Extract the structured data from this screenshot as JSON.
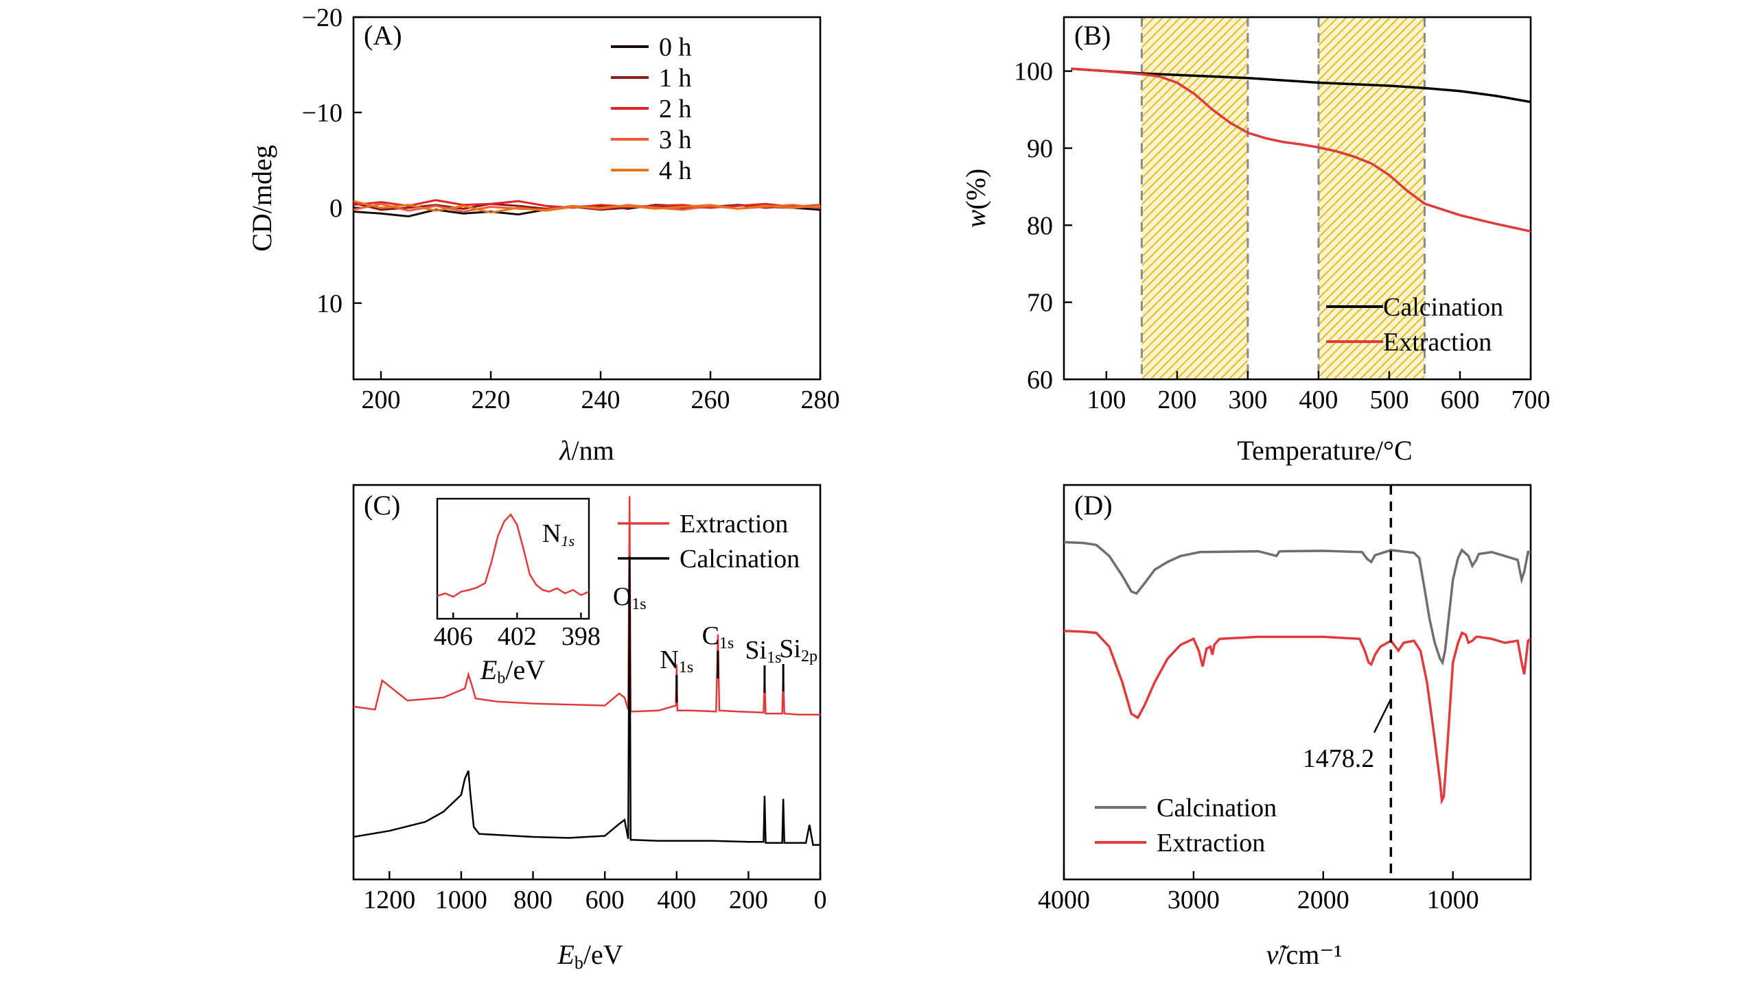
{
  "figure": {
    "panels": [
      "A",
      "B",
      "C",
      "D"
    ]
  },
  "chart_data": [
    {
      "id": "A",
      "type": "line",
      "panel_label": "(A)",
      "xlabel": "λ/nm",
      "ylabel": "CD/mdeg",
      "xlim": [
        195,
        280
      ],
      "ylim": [
        18,
        -20
      ],
      "y_inverted": true,
      "xticks": [
        200,
        220,
        240,
        260,
        280
      ],
      "yticks": [
        -20,
        -10,
        0,
        10
      ],
      "ytick_labels": [
        "−20",
        "−10",
        "0",
        "10"
      ],
      "legend_position": "top-center",
      "series": [
        {
          "name": "0 h",
          "color": "#1a0a0a",
          "x": [
            195,
            200,
            205,
            210,
            215,
            220,
            225,
            230,
            235,
            240,
            245,
            250,
            255,
            260,
            265,
            270,
            275,
            280
          ],
          "y": [
            0.4,
            0.6,
            0.9,
            0.2,
            0.6,
            0.4,
            0.7,
            0.2,
            -0.1,
            -0.2,
            0.1,
            -0.3,
            -0.2,
            0.0,
            -0.3,
            -0.1,
            0.0,
            0.2
          ]
        },
        {
          "name": "1 h",
          "color": "#8b1a1a",
          "x": [
            195,
            200,
            205,
            210,
            215,
            220,
            225,
            230,
            235,
            240,
            245,
            250,
            255,
            260,
            265,
            270,
            275,
            280
          ],
          "y": [
            -0.5,
            0.2,
            0.0,
            -0.3,
            0.1,
            -0.4,
            -0.2,
            0.1,
            -0.1,
            0.2,
            0.0,
            -0.2,
            0.1,
            -0.1,
            -0.3,
            0.0,
            -0.2,
            -0.1
          ]
        },
        {
          "name": "2 h",
          "color": "#e02424",
          "x": [
            195,
            200,
            205,
            210,
            215,
            220,
            225,
            230,
            235,
            240,
            245,
            250,
            255,
            260,
            265,
            270,
            275,
            280
          ],
          "y": [
            -0.3,
            -0.6,
            -0.2,
            -0.8,
            -0.3,
            -0.4,
            -0.7,
            -0.2,
            0.0,
            -0.3,
            -0.1,
            -0.2,
            -0.3,
            0.0,
            -0.2,
            -0.4,
            -0.1,
            -0.3
          ]
        },
        {
          "name": "3 h",
          "color": "#f05a3c",
          "x": [
            195,
            200,
            205,
            210,
            215,
            220,
            225,
            230,
            235,
            240,
            245,
            250,
            255,
            260,
            265,
            270,
            275,
            280
          ],
          "y": [
            0.2,
            -0.4,
            0.3,
            -0.2,
            0.4,
            -0.1,
            0.1,
            0.2,
            -0.2,
            0.1,
            -0.3,
            0.0,
            0.2,
            -0.2,
            0.1,
            -0.1,
            -0.3,
            0.0
          ]
        },
        {
          "name": "4 h",
          "color": "#e8751a",
          "x": [
            195,
            200,
            205,
            210,
            215,
            220,
            225,
            230,
            235,
            240,
            245,
            250,
            255,
            260,
            265,
            270,
            275,
            280
          ],
          "y": [
            -0.7,
            0.0,
            -0.3,
            0.3,
            -0.2,
            0.5,
            0.0,
            0.3,
            -0.1,
            0.0,
            -0.2,
            0.1,
            -0.1,
            -0.3,
            0.1,
            -0.2,
            0.0,
            -0.2
          ]
        }
      ]
    },
    {
      "id": "B",
      "type": "line",
      "panel_label": "(B)",
      "xlabel": "Temperature/°C",
      "ylabel_italic": "w",
      "ylabel_rest": "(%)",
      "xlim": [
        40,
        700
      ],
      "ylim": [
        60,
        107
      ],
      "xticks": [
        100,
        200,
        300,
        400,
        500,
        600,
        700
      ],
      "yticks": [
        60,
        70,
        80,
        90,
        100
      ],
      "legend_position": "bottom-right",
      "shaded_regions": [
        [
          150,
          300
        ],
        [
          400,
          550
        ]
      ],
      "shade_color": "#e8c21e",
      "series": [
        {
          "name": "Calcination",
          "color": "#000000",
          "x": [
            50,
            100,
            150,
            200,
            250,
            300,
            350,
            400,
            450,
            500,
            550,
            600,
            650,
            700
          ],
          "y": [
            100.3,
            100.0,
            99.7,
            99.5,
            99.3,
            99.1,
            98.8,
            98.5,
            98.3,
            98.1,
            97.8,
            97.4,
            96.8,
            96.0
          ]
        },
        {
          "name": "Extraction",
          "color": "#e03a3a",
          "x": [
            50,
            100,
            150,
            175,
            200,
            225,
            250,
            275,
            300,
            325,
            350,
            375,
            400,
            425,
            450,
            475,
            500,
            525,
            550,
            600,
            650,
            700
          ],
          "y": [
            100.3,
            100.0,
            99.6,
            99.3,
            98.5,
            97.0,
            95.0,
            93.3,
            92.0,
            91.3,
            90.8,
            90.5,
            90.1,
            89.6,
            88.9,
            88.0,
            86.5,
            84.5,
            82.8,
            81.3,
            80.2,
            79.2
          ]
        }
      ]
    },
    {
      "id": "C",
      "type": "line",
      "panel_label": "(C)",
      "xlabel_italic": "E",
      "xlabel_sub": "b",
      "xlabel_rest": "/eV",
      "xlim": [
        1300,
        0
      ],
      "x_inverted": true,
      "xticks": [
        1200,
        1000,
        800,
        600,
        400,
        200,
        0
      ],
      "legend_position": "top-right",
      "peak_labels": [
        {
          "label": "O",
          "sub": "1s",
          "x": 531
        },
        {
          "label": "N",
          "sub": "1s",
          "x": 400
        },
        {
          "label": "C",
          "sub": "1s",
          "x": 285
        },
        {
          "label": "Si",
          "sub": "1s",
          "x": 155
        },
        {
          "label": "Si",
          "sub": "2p",
          "x": 103
        }
      ],
      "series": [
        {
          "name": "Extraction",
          "color": "#e03a3a",
          "baseline": 0.0,
          "x": [
            1300,
            1240,
            1220,
            1150,
            1050,
            990,
            980,
            970,
            960,
            900,
            800,
            700,
            600,
            560,
            545,
            535,
            531,
            528,
            520,
            450,
            402,
            400,
            398,
            360,
            290,
            285,
            281,
            230,
            158,
            155,
            152,
            106,
            103,
            100,
            60,
            0
          ],
          "y": [
            0.0,
            -0.3,
            2.6,
            0.6,
            0.9,
            1.8,
            3.2,
            2.1,
            0.8,
            0.5,
            0.3,
            0.2,
            0.1,
            1.3,
            0.9,
            -0.3,
            21.0,
            -0.5,
            -0.5,
            -0.4,
            0.1,
            4.2,
            -0.4,
            -0.4,
            -0.5,
            7.2,
            -0.4,
            -0.5,
            -0.6,
            2.8,
            -0.7,
            -0.7,
            3.0,
            -0.7,
            -0.8,
            -0.8
          ]
        },
        {
          "name": "Calcination",
          "color": "#000000",
          "baseline": 0.0,
          "x": [
            1300,
            1200,
            1100,
            1050,
            1000,
            990,
            980,
            975,
            965,
            950,
            800,
            700,
            600,
            560,
            545,
            535,
            531,
            528,
            520,
            450,
            300,
            200,
            158,
            155,
            152,
            106,
            103,
            100,
            40,
            30,
            20,
            0
          ],
          "y": [
            0.0,
            0.6,
            1.5,
            2.5,
            4.2,
            5.8,
            6.6,
            4.5,
            1.0,
            0.3,
            0.0,
            -0.1,
            0.1,
            1.3,
            1.7,
            -0.2,
            28.0,
            -0.3,
            -0.3,
            -0.4,
            -0.4,
            -0.5,
            -0.5,
            4.1,
            -0.6,
            -0.6,
            3.8,
            -0.6,
            -0.6,
            1.2,
            -0.8,
            -0.8
          ]
        }
      ],
      "inset": {
        "xlabel_italic": "E",
        "xlabel_sub": "b",
        "xlabel_rest": "/eV",
        "xlim": [
          407,
          397.5
        ],
        "xticks": [
          406,
          402,
          398
        ],
        "title": "N",
        "title_sub": "1s",
        "series": {
          "name": "N1s",
          "color": "#e03a3a",
          "x": [
            407,
            406.5,
            406,
            405.5,
            405,
            404.5,
            404,
            403.6,
            403.2,
            402.8,
            402.4,
            402.0,
            401.6,
            401.2,
            400.8,
            400.4,
            400,
            399.5,
            399,
            398.5,
            398,
            397.5
          ],
          "y": [
            0.05,
            0.08,
            0.04,
            0.1,
            0.12,
            0.15,
            0.2,
            0.45,
            0.75,
            0.92,
            1.0,
            0.88,
            0.6,
            0.3,
            0.18,
            0.12,
            0.1,
            0.14,
            0.08,
            0.12,
            0.06,
            0.1
          ]
        }
      }
    },
    {
      "id": "D",
      "type": "line",
      "panel_label": "(D)",
      "xlabel_tilde": "ν̃",
      "xlabel_rest": "/cm⁻¹",
      "xlim": [
        4000,
        400
      ],
      "x_inverted": true,
      "xticks": [
        4000,
        3000,
        2000,
        1000
      ],
      "ylim": [
        0,
        100
      ],
      "annotation": {
        "text": "1478.2",
        "x": 1478.2
      },
      "legend_position": "bottom-left",
      "series": [
        {
          "name": "Calcination",
          "color": "#6e6e6e",
          "x": [
            4000,
            3850,
            3750,
            3650,
            3550,
            3480,
            3440,
            3380,
            3300,
            3200,
            3100,
            2950,
            2500,
            2360,
            2340,
            2320,
            2000,
            1700,
            1660,
            1630,
            1600,
            1478,
            1300,
            1260,
            1220,
            1180,
            1140,
            1100,
            1080,
            1060,
            1000,
            960,
            930,
            880,
            850,
            820,
            800,
            700,
            600,
            500,
            470,
            450,
            420,
            400
          ],
          "y": [
            85.5,
            85.3,
            84.8,
            82.0,
            77.0,
            73.0,
            72.5,
            75.0,
            78.5,
            80.5,
            82.0,
            83.0,
            83.2,
            82.0,
            83.1,
            83.2,
            83.3,
            83.0,
            81.2,
            80.5,
            82.2,
            83.5,
            82.8,
            81.5,
            74.0,
            66.0,
            60.0,
            56.0,
            55.0,
            58.0,
            76.0,
            81.5,
            83.5,
            82.0,
            79.5,
            81.0,
            82.5,
            83.0,
            82.0,
            81.0,
            76.0,
            78.0,
            83.0,
            83.0
          ]
        },
        {
          "name": "Extraction",
          "color": "#e03a3a",
          "x": [
            4000,
            3850,
            3750,
            3650,
            3550,
            3480,
            3430,
            3380,
            3300,
            3200,
            3100,
            3000,
            2960,
            2930,
            2900,
            2870,
            2855,
            2840,
            2800,
            2500,
            2000,
            1720,
            1680,
            1650,
            1630,
            1600,
            1560,
            1478,
            1420,
            1380,
            1300,
            1250,
            1200,
            1150,
            1100,
            1085,
            1070,
            1040,
            1000,
            960,
            930,
            900,
            880,
            850,
            820,
            800,
            700,
            600,
            500,
            470,
            450,
            420,
            400
          ],
          "y": [
            63.0,
            62.8,
            62.5,
            59.0,
            50.0,
            42.0,
            41.0,
            44.0,
            50.0,
            56.0,
            59.5,
            61.0,
            58.0,
            54.0,
            58.5,
            59.0,
            57.0,
            59.5,
            61.0,
            61.5,
            61.5,
            61.0,
            58.0,
            55.0,
            54.5,
            57.0,
            59.0,
            60.5,
            58.0,
            60.0,
            60.5,
            58.0,
            50.0,
            38.0,
            25.0,
            20.0,
            21.0,
            35.0,
            55.0,
            60.0,
            62.5,
            62.0,
            60.0,
            60.5,
            61.5,
            61.5,
            61.0,
            60.0,
            60.5,
            55.0,
            52.0,
            60.5,
            61.0
          ]
        }
      ]
    }
  ]
}
